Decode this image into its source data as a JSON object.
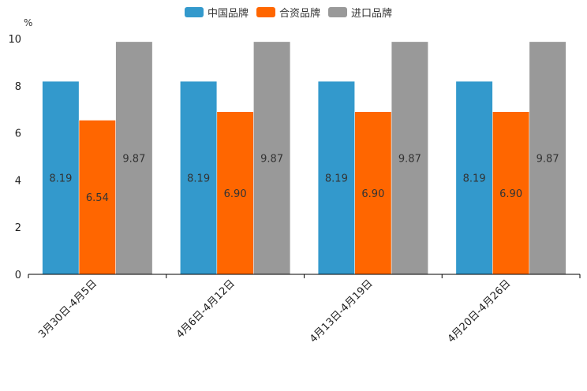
{
  "chart_data": {
    "type": "bar",
    "title": "",
    "ylabel": "%",
    "xlabel": "",
    "ylim": [
      0,
      10
    ],
    "yticks": [
      0,
      2,
      4,
      6,
      8,
      10
    ],
    "categories": [
      "3月30日-4月5日",
      "4月6日-4月12日",
      "4月13日-4月19日",
      "4月20日-4月26日"
    ],
    "series": [
      {
        "name": "中国品牌",
        "color": "#3399cc",
        "values": [
          8.19,
          8.19,
          8.19,
          8.19
        ],
        "labels": [
          "8.19",
          "8.19",
          "8.19",
          "8.19"
        ]
      },
      {
        "name": "合资品牌",
        "color": "#ff6600",
        "values": [
          6.54,
          6.9,
          6.9,
          6.9
        ],
        "labels": [
          "6.54",
          "6.90",
          "6.90",
          "6.90"
        ]
      },
      {
        "name": "进口品牌",
        "color": "#999999",
        "values": [
          9.87,
          9.87,
          9.87,
          9.87
        ],
        "labels": [
          "9.87",
          "9.87",
          "9.87",
          "9.87"
        ]
      }
    ],
    "legend_position": "top-center"
  }
}
